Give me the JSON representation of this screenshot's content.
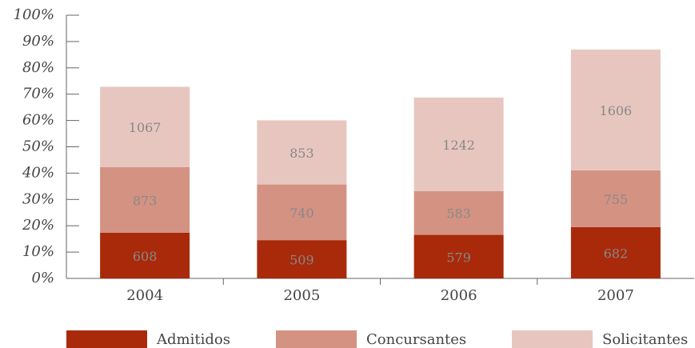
{
  "chart_data": {
    "type": "stacked_bar",
    "categories": [
      "2004",
      "2005",
      "2006",
      "2007"
    ],
    "series": [
      {
        "name": "Admitidos",
        "color": "#a82a0a",
        "values": [
          608,
          509,
          579,
          682
        ]
      },
      {
        "name": "Concursantes",
        "color": "#d49283",
        "values": [
          873,
          740,
          583,
          755
        ]
      },
      {
        "name": "Solicitantes",
        "color": "#e8c6c0",
        "values": [
          1067,
          853,
          1242,
          1606
        ]
      }
    ],
    "ylim": [
      0,
      3500
    ],
    "yticks": [
      {
        "value": 0,
        "label": "0%"
      },
      {
        "value": 350,
        "label": "10%"
      },
      {
        "value": 700,
        "label": "20%"
      },
      {
        "value": 1050,
        "label": "30%"
      },
      {
        "value": 1400,
        "label": "40%"
      },
      {
        "value": 1750,
        "label": "50%"
      },
      {
        "value": 2100,
        "label": "60%"
      },
      {
        "value": 2450,
        "label": "70%"
      },
      {
        "value": 2800,
        "label": "80%"
      },
      {
        "value": 3150,
        "label": "90%"
      },
      {
        "value": 3500,
        "label": "100%"
      }
    ],
    "legend": "bottom"
  }
}
